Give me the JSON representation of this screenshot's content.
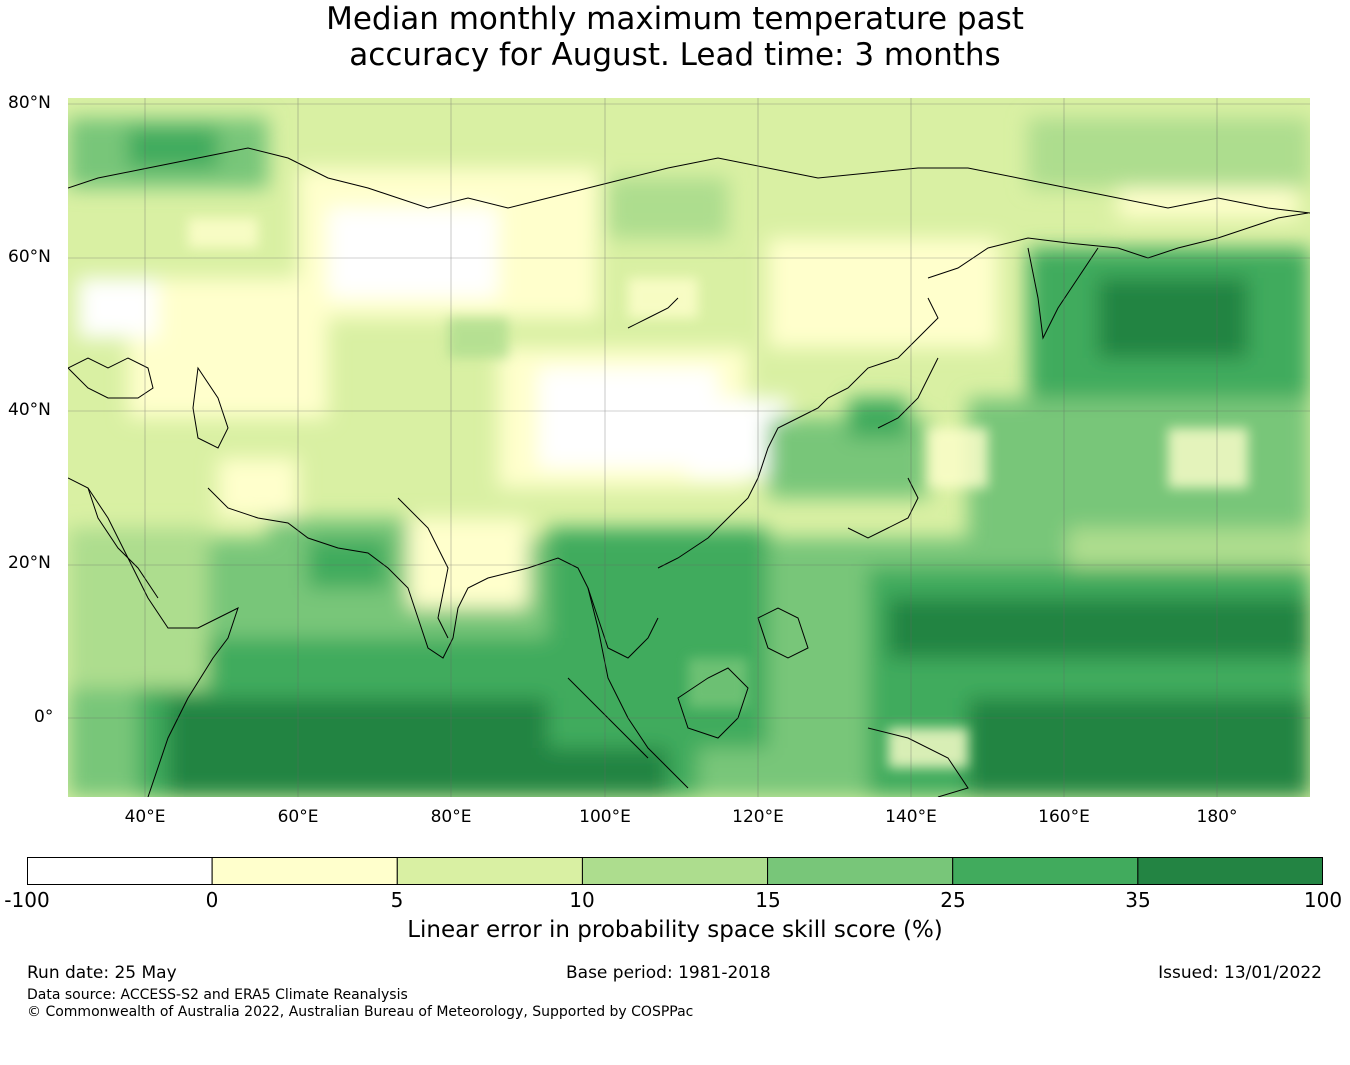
{
  "title": {
    "line1": "Median monthly maximum temperature past",
    "line2": "accuracy for August. Lead time: 3 months"
  },
  "map": {
    "lat_labels": [
      "80°N",
      "60°N",
      "40°N",
      "20°N",
      "0°"
    ],
    "lon_labels": [
      "40°E",
      "60°E",
      "80°E",
      "100°E",
      "120°E",
      "140°E",
      "160°E",
      "180°"
    ],
    "extent": {
      "lon_min": 30,
      "lon_max": 192,
      "lat_min": -10,
      "lat_max": 81
    }
  },
  "colorbar": {
    "title": "Linear error in probability space skill score (%)",
    "boundaries": [
      "-100",
      "0",
      "5",
      "10",
      "15",
      "25",
      "35",
      "100"
    ],
    "colors": [
      "#ffffff",
      "#ffffcc",
      "#d9f0a3",
      "#addd8e",
      "#78c679",
      "#41ab5d",
      "#238443"
    ]
  },
  "footer": {
    "run_date": "Run date: 25 May",
    "base_period": "Base period: 1981-2018",
    "issued": "Issued: 13/01/2022",
    "data_source": "Data source: ACCESS-S2 and ERA5 Climate Reanalysis",
    "copyright": "© Commonwealth of Australia 2022, Australian Bureau of Meteorology, Supported by COSPPac"
  }
}
